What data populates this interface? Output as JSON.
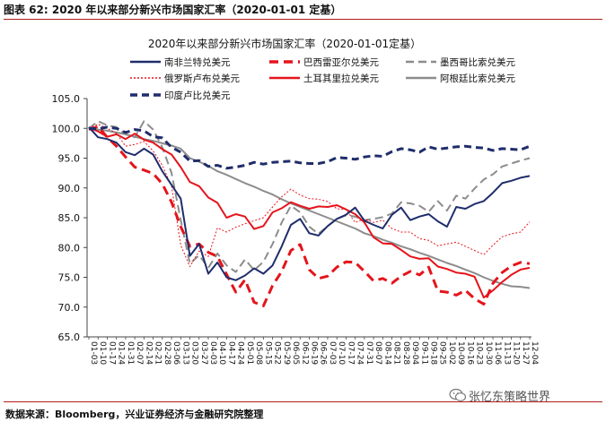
{
  "header": {
    "figure_title": "图表 62:  2020 年以来部分新兴市场国家汇率（2020-01-01 定基）"
  },
  "footer": {
    "source": "数据来源：Bloomberg，兴业证券经济与金融研究院整理"
  },
  "watermark": {
    "text": "张忆东策略世界",
    "icon": "wechat-icon"
  },
  "chart_data": {
    "type": "line",
    "title": "2020年以来部分新兴市场国家汇率（2020-01-01定基）",
    "xlabel": "",
    "ylabel": "",
    "ylim": [
      65,
      105
    ],
    "yticks": [
      "65.0",
      "70.0",
      "75.0",
      "80.0",
      "85.0",
      "90.0",
      "95.0",
      "100.0",
      "105.0"
    ],
    "grid": false,
    "legend_position": "top",
    "x": [
      "01-03",
      "01-10",
      "01-17",
      "01-24",
      "01-31",
      "02-07",
      "02-14",
      "02-21",
      "02-28",
      "03-06",
      "03-13",
      "03-20",
      "03-27",
      "04-03",
      "04-10",
      "04-17",
      "04-24",
      "05-01",
      "05-08",
      "05-15",
      "05-22",
      "05-29",
      "06-05",
      "06-12",
      "06-19",
      "06-26",
      "07-03",
      "07-10",
      "07-17",
      "07-24",
      "07-31",
      "08-07",
      "08-14",
      "08-21",
      "08-28",
      "09-04",
      "09-11",
      "09-18",
      "09-25",
      "10-02",
      "10-09",
      "10-16",
      "10-23",
      "10-30",
      "11-06",
      "11-13",
      "11-20",
      "11-27",
      "12-04"
    ],
    "series": [
      {
        "name": "南非兰特兑美元",
        "color": "#1f2d6b",
        "dash": "solid",
        "width": 2,
        "values": [
          100.2,
          98.5,
          98.2,
          97.6,
          96.0,
          95.5,
          96.6,
          95.6,
          92.8,
          90.5,
          88.2,
          78.6,
          80.6,
          75.6,
          77.5,
          75.0,
          74.5,
          75.3,
          76.5,
          75.6,
          77.0,
          80.2,
          83.8,
          84.8,
          82.4,
          82.0,
          83.6,
          84.8,
          85.5,
          86.7,
          84.5,
          83.8,
          83.2,
          85.5,
          86.7,
          84.6,
          85.2,
          85.6,
          84.4,
          83.5,
          86.8,
          86.5,
          87.3,
          87.8,
          89.2,
          90.8,
          91.2,
          91.7,
          92.0
        ]
      },
      {
        "name": "巴西雷亚尔兑美元",
        "color": "#e5141b",
        "dash": "10,6",
        "width": 3,
        "values": [
          99.8,
          100.3,
          98.5,
          97.0,
          95.2,
          93.5,
          93.0,
          92.4,
          90.7,
          87.6,
          83.5,
          80.2,
          80.6,
          79.2,
          78.5,
          75.5,
          72.5,
          74.6,
          70.8,
          70.2,
          73.6,
          76.0,
          79.5,
          80.5,
          76.3,
          74.8,
          75.2,
          76.7,
          77.6,
          77.5,
          76.0,
          74.4,
          74.8,
          74.0,
          75.2,
          76.0,
          75.4,
          76.7,
          72.7,
          72.5,
          72.0,
          72.8,
          71.4,
          70.5,
          74.0,
          75.8,
          76.9,
          77.5,
          77.3
        ]
      },
      {
        "name": "墨西哥比索兑美元",
        "color": "#8c8c8c",
        "dash": "9,5",
        "width": 2,
        "values": [
          100.0,
          101.2,
          100.5,
          100.2,
          99.0,
          98.5,
          101.2,
          99.8,
          96.8,
          92.5,
          84.6,
          77.3,
          78.7,
          76.6,
          79.0,
          77.0,
          75.9,
          78.0,
          76.2,
          77.6,
          80.6,
          84.2,
          87.0,
          85.9,
          83.5,
          82.3,
          83.6,
          84.8,
          85.4,
          85.2,
          84.6,
          84.8,
          85.1,
          85.7,
          87.6,
          87.4,
          87.0,
          86.0,
          87.8,
          86.2,
          88.7,
          88.2,
          89.9,
          91.4,
          92.3,
          93.6,
          94.1,
          94.6,
          95.0
        ]
      },
      {
        "name": "俄罗斯卢布兑美元",
        "color": "#e5141b",
        "dash": "2,2",
        "width": 1,
        "values": [
          100.0,
          100.7,
          100.0,
          99.2,
          97.0,
          97.3,
          97.8,
          96.2,
          93.8,
          90.3,
          80.4,
          76.8,
          79.4,
          78.5,
          83.3,
          82.6,
          83.4,
          84.0,
          84.5,
          85.0,
          86.8,
          88.5,
          89.8,
          88.8,
          88.2,
          88.1,
          87.7,
          86.5,
          86.4,
          84.2,
          84.8,
          84.2,
          84.6,
          83.2,
          82.6,
          82.6,
          81.5,
          81.2,
          80.3,
          80.6,
          80.9,
          80.2,
          79.5,
          78.8,
          80.4,
          81.8,
          82.3,
          82.6,
          84.3
        ]
      },
      {
        "name": "土耳其里拉兑美元",
        "color": "#e5141b",
        "dash": "solid",
        "width": 2,
        "values": [
          100.1,
          99.5,
          98.6,
          99.0,
          98.2,
          99.1,
          98.1,
          97.6,
          96.5,
          95.6,
          93.5,
          91.0,
          90.3,
          88.4,
          87.5,
          85.0,
          85.6,
          85.2,
          83.1,
          83.6,
          85.9,
          86.6,
          87.6,
          87.0,
          86.5,
          86.9,
          86.8,
          87.1,
          86.4,
          85.6,
          84.2,
          81.7,
          80.7,
          80.6,
          79.6,
          78.5,
          78.1,
          78.2,
          76.8,
          76.4,
          75.8,
          75.6,
          75.1,
          71.6,
          72.8,
          74.2,
          75.4,
          76.3,
          76.6
        ]
      },
      {
        "name": "阿根廷比索兑美元",
        "color": "#8c8c8c",
        "dash": "solid",
        "width": 2,
        "values": [
          100.0,
          99.8,
          99.6,
          99.3,
          99.0,
          98.6,
          98.2,
          97.9,
          97.5,
          97.1,
          96.6,
          95.0,
          94.4,
          93.7,
          92.8,
          92.2,
          91.5,
          90.8,
          90.2,
          89.5,
          88.9,
          88.1,
          87.4,
          86.8,
          86.2,
          85.6,
          85.0,
          84.4,
          83.8,
          83.2,
          82.4,
          81.9,
          81.3,
          80.8,
          80.2,
          79.7,
          79.1,
          78.6,
          78.0,
          77.4,
          76.9,
          76.3,
          75.7,
          75.0,
          74.4,
          73.9,
          73.5,
          73.4,
          73.2
        ]
      },
      {
        "name": "印度卢比兑美元",
        "color": "#1f2d6b",
        "dash": "8,5",
        "width": 3,
        "values": [
          100.0,
          99.9,
          100.2,
          100.0,
          99.3,
          99.8,
          99.6,
          98.6,
          98.4,
          96.8,
          96.0,
          94.5,
          94.6,
          93.6,
          93.8,
          93.3,
          93.5,
          93.8,
          94.3,
          94.0,
          94.3,
          94.4,
          94.5,
          94.2,
          94.1,
          94.1,
          94.4,
          95.1,
          95.0,
          94.8,
          95.2,
          95.4,
          95.3,
          96.1,
          96.6,
          96.4,
          96.0,
          96.9,
          96.5,
          96.7,
          96.9,
          97.0,
          96.8,
          96.7,
          96.3,
          96.6,
          96.5,
          96.4,
          97.0
        ]
      }
    ]
  }
}
